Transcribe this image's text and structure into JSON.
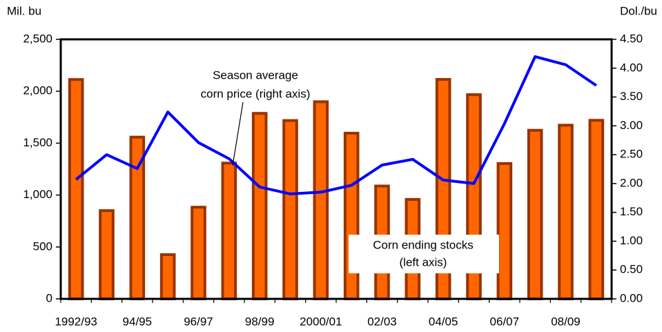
{
  "chart_data": {
    "type": "bar-line",
    "y_label": "Mil. bu",
    "y2_label": "Dol./bu",
    "categories": [
      "1992/93",
      null,
      "94/95",
      null,
      "96/97",
      null,
      "98/99",
      null,
      "2000/01",
      null,
      "02/03",
      null,
      "04/05",
      null,
      "06/07",
      null,
      "08/09",
      null
    ],
    "series": [
      {
        "type": "bar",
        "color": "#ff6600",
        "edge_color": "#993300",
        "values": [
          2113,
          850,
          1558,
          426,
          883,
          1308,
          1787,
          1718,
          1899,
          1596,
          1087,
          958,
          2114,
          1967,
          1304,
          1624,
          1673,
          1720
        ]
      },
      {
        "type": "line",
        "axis": "y2",
        "color": "#0000ff",
        "values": [
          2.07,
          2.5,
          2.26,
          3.24,
          2.71,
          2.43,
          1.94,
          1.82,
          1.85,
          1.97,
          2.32,
          2.42,
          2.06,
          2.0,
          3.04,
          4.2,
          4.06,
          3.7
        ]
      }
    ],
    "annotations": [
      {
        "lines": [
          "Season average",
          "corn price (right axis)"
        ]
      },
      {
        "lines": [
          "Corn ending stocks",
          "(left axis)"
        ]
      }
    ],
    "ylim": [
      0,
      2500
    ],
    "yticks": [
      0,
      500,
      {
        "value": 1000,
        "label": "1,000"
      },
      {
        "value": 1500,
        "label": "1,500"
      },
      {
        "value": 2000,
        "label": "2,000"
      },
      {
        "value": 2500,
        "label": "2,500"
      }
    ],
    "y2lim": [
      0,
      4.5
    ],
    "y2ticks": [
      {
        "value": 0,
        "label": "0.00"
      },
      {
        "value": 0.5,
        "label": "0.50"
      },
      {
        "value": 1,
        "label": "1.00"
      },
      {
        "value": 1.5,
        "label": "1.50"
      },
      {
        "value": 2,
        "label": "2.00"
      },
      {
        "value": 2.5,
        "label": "2.50"
      },
      {
        "value": 3,
        "label": "3.00"
      },
      {
        "value": 3.5,
        "label": "3.50"
      },
      {
        "value": 4,
        "label": "4.00"
      },
      {
        "value": 4.5,
        "label": "4.50"
      }
    ],
    "grid": false
  }
}
